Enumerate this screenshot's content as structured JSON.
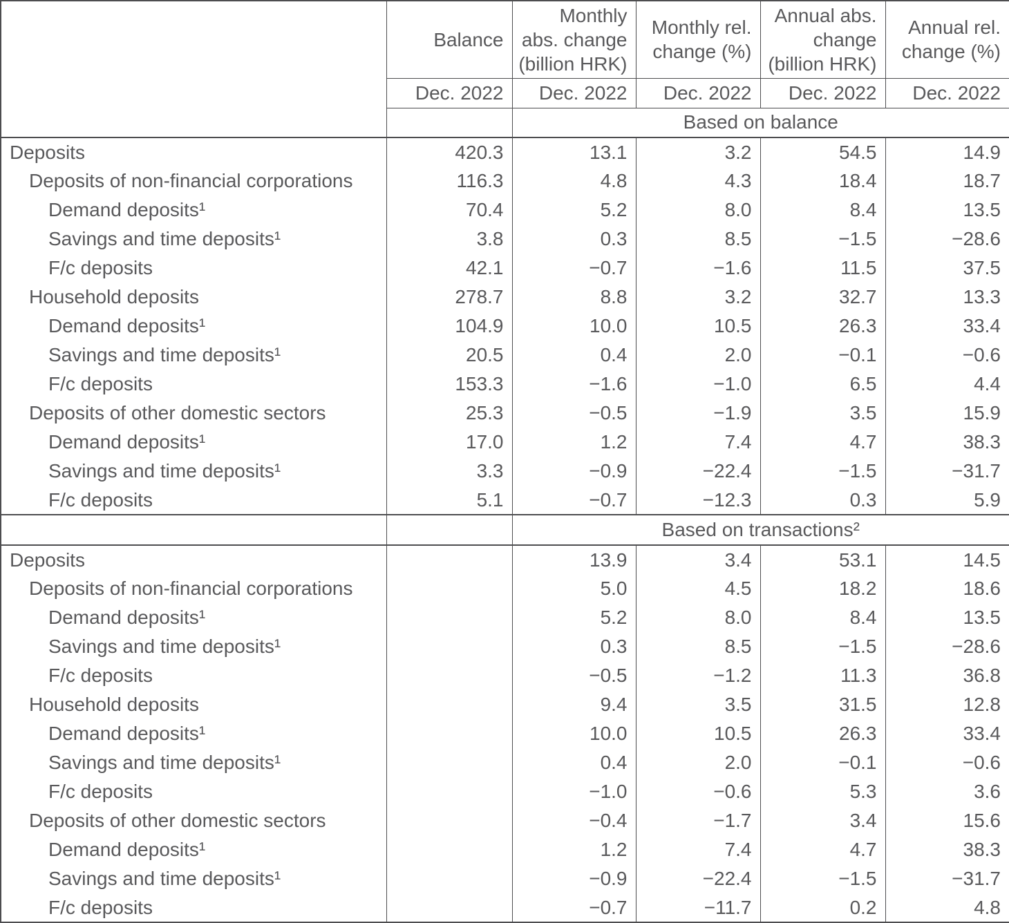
{
  "colors": {
    "text": "#59595b",
    "line": "#4d4d4f",
    "bg": "#ffffff"
  },
  "chart_data": {
    "type": "table",
    "period": "Dec. 2022",
    "columns": [
      {
        "label": "Balance"
      },
      {
        "label": "Monthly\nabs. change\n(billion HRK)"
      },
      {
        "label": "Monthly rel.\nchange (%)"
      },
      {
        "label": "Annual abs.\nchange\n(billion HRK)"
      },
      {
        "label": "Annual rel.\nchange (%)"
      }
    ],
    "period_row": [
      "Dec. 2022",
      "Dec. 2022",
      "Dec. 2022",
      "Dec. 2022",
      "Dec. 2022"
    ],
    "sections": [
      {
        "title": "Based on balance",
        "rows": [
          {
            "label": "Deposits",
            "indent": 0,
            "values": [
              "420.3",
              "13.1",
              "3.2",
              "54.5",
              "14.9"
            ]
          },
          {
            "label": "Deposits of non-financial corporations",
            "indent": 1,
            "values": [
              "116.3",
              "4.8",
              "4.3",
              "18.4",
              "18.7"
            ]
          },
          {
            "label": "Demand deposits¹",
            "indent": 2,
            "values": [
              "70.4",
              "5.2",
              "8.0",
              "8.4",
              "13.5"
            ]
          },
          {
            "label": "Savings and time deposits¹",
            "indent": 2,
            "values": [
              "3.8",
              "0.3",
              "8.5",
              "−1.5",
              "−28.6"
            ]
          },
          {
            "label": "F/c deposits",
            "indent": 2,
            "values": [
              "42.1",
              "−0.7",
              "−1.6",
              "11.5",
              "37.5"
            ]
          },
          {
            "label": "Household deposits",
            "indent": 1,
            "values": [
              "278.7",
              "8.8",
              "3.2",
              "32.7",
              "13.3"
            ]
          },
          {
            "label": "Demand deposits¹",
            "indent": 2,
            "values": [
              "104.9",
              "10.0",
              "10.5",
              "26.3",
              "33.4"
            ]
          },
          {
            "label": "Savings and time deposits¹",
            "indent": 2,
            "values": [
              "20.5",
              "0.4",
              "2.0",
              "−0.1",
              "−0.6"
            ]
          },
          {
            "label": "F/c deposits",
            "indent": 2,
            "values": [
              "153.3",
              "−1.6",
              "−1.0",
              "6.5",
              "4.4"
            ]
          },
          {
            "label": "Deposits of other domestic sectors",
            "indent": 1,
            "values": [
              "25.3",
              "−0.5",
              "−1.9",
              "3.5",
              "15.9"
            ]
          },
          {
            "label": "Demand deposits¹",
            "indent": 2,
            "values": [
              "17.0",
              "1.2",
              "7.4",
              "4.7",
              "38.3"
            ]
          },
          {
            "label": "Savings and time deposits¹",
            "indent": 2,
            "values": [
              "3.3",
              "−0.9",
              "−22.4",
              "−1.5",
              "−31.7"
            ]
          },
          {
            "label": "F/c deposits",
            "indent": 2,
            "values": [
              "5.1",
              "−0.7",
              "−12.3",
              "0.3",
              "5.9"
            ]
          }
        ]
      },
      {
        "title": "Based on transactions²",
        "rows": [
          {
            "label": "Deposits",
            "indent": 0,
            "values": [
              "",
              "13.9",
              "3.4",
              "53.1",
              "14.5"
            ]
          },
          {
            "label": "Deposits of non-financial corporations",
            "indent": 1,
            "values": [
              "",
              "5.0",
              "4.5",
              "18.2",
              "18.6"
            ]
          },
          {
            "label": "Demand deposits¹",
            "indent": 2,
            "values": [
              "",
              "5.2",
              "8.0",
              "8.4",
              "13.5"
            ]
          },
          {
            "label": "Savings and time deposits¹",
            "indent": 2,
            "values": [
              "",
              "0.3",
              "8.5",
              "−1.5",
              "−28.6"
            ]
          },
          {
            "label": "F/c deposits",
            "indent": 2,
            "values": [
              "",
              "−0.5",
              "−1.2",
              "11.3",
              "36.8"
            ]
          },
          {
            "label": "Household deposits",
            "indent": 1,
            "values": [
              "",
              "9.4",
              "3.5",
              "31.5",
              "12.8"
            ]
          },
          {
            "label": "Demand deposits¹",
            "indent": 2,
            "values": [
              "",
              "10.0",
              "10.5",
              "26.3",
              "33.4"
            ]
          },
          {
            "label": "Savings and time deposits¹",
            "indent": 2,
            "values": [
              "",
              "0.4",
              "2.0",
              "−0.1",
              "−0.6"
            ]
          },
          {
            "label": "F/c deposits",
            "indent": 2,
            "values": [
              "",
              "−1.0",
              "−0.6",
              "5.3",
              "3.6"
            ]
          },
          {
            "label": "Deposits of other domestic sectors",
            "indent": 1,
            "values": [
              "",
              "−0.4",
              "−1.7",
              "3.4",
              "15.6"
            ]
          },
          {
            "label": "Demand deposits¹",
            "indent": 2,
            "values": [
              "",
              "1.2",
              "7.4",
              "4.7",
              "38.3"
            ]
          },
          {
            "label": "Savings and time deposits¹",
            "indent": 2,
            "values": [
              "",
              "−0.9",
              "−22.4",
              "−1.5",
              "−31.7"
            ]
          },
          {
            "label": "F/c deposits",
            "indent": 2,
            "values": [
              "",
              "−0.7",
              "−11.7",
              "0.2",
              "4.8"
            ]
          }
        ]
      }
    ]
  }
}
